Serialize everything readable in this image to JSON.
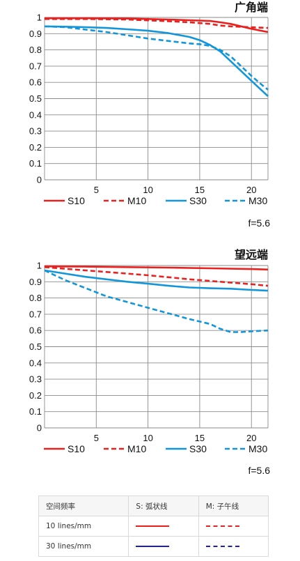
{
  "chart_data": [
    {
      "type": "line",
      "title": "广角端",
      "note": "f=5.6",
      "xlim": [
        0,
        21.6
      ],
      "ylim": [
        0,
        1
      ],
      "xticks": [
        5,
        10,
        15,
        20
      ],
      "yticks": [
        0,
        0.1,
        0.2,
        0.3,
        0.4,
        0.5,
        0.6,
        0.7,
        0.8,
        0.9,
        1
      ],
      "grid": true,
      "legend_position": "bottom",
      "series": [
        {
          "name": "S10",
          "color": "#e8211f",
          "dash": false,
          "x": [
            0,
            4,
            8,
            10,
            12,
            14,
            16,
            17,
            18,
            19,
            20,
            21.6
          ],
          "y": [
            0.995,
            0.995,
            0.993,
            0.99,
            0.987,
            0.983,
            0.978,
            0.97,
            0.96,
            0.945,
            0.93,
            0.91
          ]
        },
        {
          "name": "M10",
          "color": "#e8211f",
          "dash": true,
          "x": [
            0,
            4,
            8,
            10,
            12,
            14,
            16,
            17,
            18,
            21.6
          ],
          "y": [
            0.99,
            0.99,
            0.987,
            0.982,
            0.977,
            0.97,
            0.96,
            0.95,
            0.945,
            0.935
          ]
        },
        {
          "name": "S30",
          "color": "#1296db",
          "dash": false,
          "x": [
            0,
            2,
            4,
            6,
            8,
            10,
            12,
            14,
            15,
            16,
            17,
            18,
            19,
            20,
            21,
            21.6
          ],
          "y": [
            0.945,
            0.943,
            0.94,
            0.935,
            0.927,
            0.918,
            0.903,
            0.88,
            0.86,
            0.83,
            0.79,
            0.73,
            0.67,
            0.61,
            0.55,
            0.515
          ]
        },
        {
          "name": "M30",
          "color": "#1296db",
          "dash": true,
          "x": [
            0,
            2,
            4,
            6,
            8,
            10,
            12,
            14,
            15,
            16,
            17,
            18,
            19,
            20,
            21,
            21.6
          ],
          "y": [
            0.945,
            0.94,
            0.925,
            0.91,
            0.89,
            0.87,
            0.855,
            0.84,
            0.835,
            0.825,
            0.8,
            0.76,
            0.7,
            0.64,
            0.585,
            0.555
          ]
        }
      ]
    },
    {
      "type": "line",
      "title": "望远端",
      "note": "f=5.6",
      "xlim": [
        0,
        21.6
      ],
      "ylim": [
        0,
        1
      ],
      "xticks": [
        5,
        10,
        15,
        20
      ],
      "yticks": [
        0,
        0.1,
        0.2,
        0.3,
        0.4,
        0.5,
        0.6,
        0.7,
        0.8,
        0.9,
        1
      ],
      "grid": true,
      "legend_position": "bottom",
      "series": [
        {
          "name": "S10",
          "color": "#e8211f",
          "dash": false,
          "x": [
            0,
            4,
            8,
            12,
            16,
            20,
            21.6
          ],
          "y": [
            0.995,
            0.993,
            0.99,
            0.987,
            0.983,
            0.978,
            0.975
          ]
        },
        {
          "name": "M10",
          "color": "#e8211f",
          "dash": true,
          "x": [
            0,
            2,
            4,
            6,
            8,
            10,
            12,
            14,
            16,
            18,
            20,
            21.6
          ],
          "y": [
            0.99,
            0.98,
            0.97,
            0.96,
            0.95,
            0.94,
            0.928,
            0.915,
            0.905,
            0.895,
            0.885,
            0.875
          ]
        },
        {
          "name": "S30",
          "color": "#1296db",
          "dash": false,
          "x": [
            0,
            2,
            4,
            6,
            8,
            10,
            12,
            14,
            16,
            18,
            20,
            21.6
          ],
          "y": [
            0.97,
            0.95,
            0.93,
            0.915,
            0.9,
            0.888,
            0.875,
            0.865,
            0.86,
            0.857,
            0.85,
            0.845
          ]
        },
        {
          "name": "M30",
          "color": "#1296db",
          "dash": true,
          "x": [
            0,
            2,
            4,
            6,
            8,
            10,
            12,
            14,
            16,
            17,
            18,
            19,
            20,
            21.6
          ],
          "y": [
            0.97,
            0.91,
            0.86,
            0.81,
            0.775,
            0.74,
            0.705,
            0.67,
            0.64,
            0.61,
            0.59,
            0.59,
            0.595,
            0.6
          ]
        }
      ]
    }
  ],
  "legend_table": {
    "headers": [
      "空间频率",
      "S: 弧状线",
      "M: 子午线"
    ],
    "rows": [
      {
        "label": "10 lines/mm",
        "color": "#e8211f"
      },
      {
        "label": "30 lines/mm",
        "color": "#1c1cbf"
      }
    ]
  }
}
